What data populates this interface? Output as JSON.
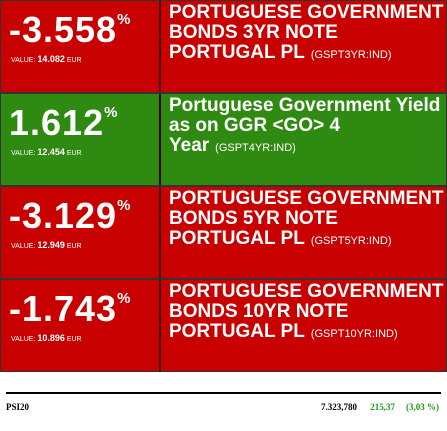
{
  "rows": [
    {
      "change": "-3.558",
      "unit": "%",
      "value_label": "VALUE:",
      "value": "14.082",
      "currency": "EUR",
      "title": "PORTUGUESE GOVERNMENT BONDS 3YR NOTE PORTUGAL PL",
      "code": "(GSPT3YR:IND)",
      "color": "#c80000"
    },
    {
      "change": "1.612",
      "unit": "%",
      "value_label": "VALUE:",
      "value": "12.454",
      "currency": "EUR",
      "title": "Portuguese Government Yield as on GGR <GO> 4 Year",
      "code": "(GSPT4YR:IND)",
      "color": "#2f8a12"
    },
    {
      "change": "-3.129",
      "unit": "%",
      "value_label": "VALUE:",
      "value": "12.949",
      "currency": "EUR",
      "title": "PORTUGUESE GOVERNMENT BONDS 5YR NOTE PORTUGAL PL",
      "code": "(GSPT5YR:IND)",
      "color": "#c80000"
    },
    {
      "change": "-1.743",
      "unit": "%",
      "value_label": "VALUE:",
      "value": "10.896",
      "currency": "EUR",
      "title": "PORTUGUESE GOVERNMENT BONDS 10YR NOTE PORTUGAL PL",
      "code": "(GSPT10YR:IND)",
      "color": "#c80000"
    }
  ],
  "footer": {
    "index": "PSI20",
    "level": "7.323,780",
    "change": "215,37",
    "percent": "(3,03 %)"
  }
}
